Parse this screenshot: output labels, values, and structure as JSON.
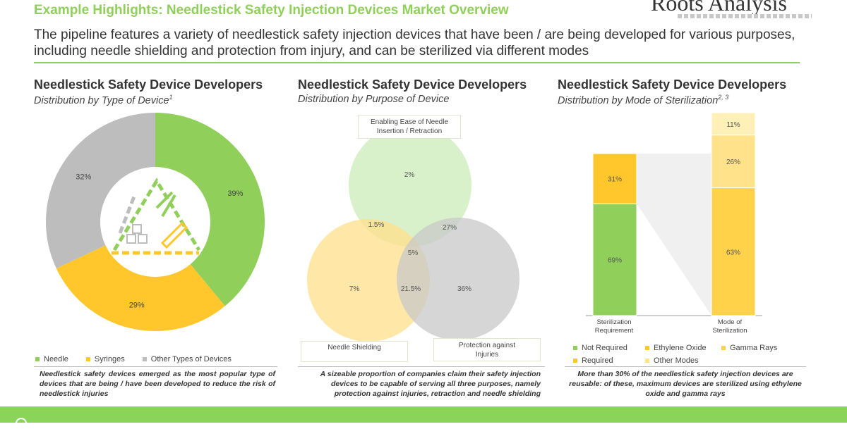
{
  "header": {
    "title": "Example Highlights: Needlestick Safety Injection Devices Market Overview",
    "brand": "Roots Analysis",
    "lead": "The pipeline features a variety of needlestick safety injection devices that have been / are being developed for various purposes, including needle shielding and protection from injury, and can be sterilized via different modes"
  },
  "colors": {
    "green": "#8fcf5a",
    "yellow": "#ffc72c",
    "gray": "#bdbdbd",
    "light_yellow": "#ffe28a",
    "light_green": "#d6f0c4"
  },
  "panels": [
    {
      "title": "Needlestick Safety Device Developers",
      "subtitle": "Distribution by Type of Device",
      "sup": "1",
      "note": "Needlestick safety devices emerged as the most popular type of devices that are being / have been developed to reduce the risk of needlestick injuries",
      "icon": "syringe-triangle-icon"
    },
    {
      "title": "Needlestick Safety Device Developers",
      "subtitle": "Distribution by Purpose of Device",
      "sup": "",
      "note": "A sizeable proportion of companies claim their safety injection devices to be capable of serving all three purposes, namely protection against injuries, retraction and needle shielding"
    },
    {
      "title": "Needlestick Safety Device Developers",
      "subtitle": "Distribution by Mode of Sterilization",
      "sup": "2, 3",
      "note": "More than 30% of the needlestick safety injection devices are reusable: of these, maximum devices are sterilized using ethylene oxide and gamma rays"
    }
  ],
  "chart_data": [
    {
      "type": "pie",
      "title": "Distribution by Type of Device",
      "categories": [
        "Needle",
        "Syringes",
        "Other Types of Devices"
      ],
      "values": [
        39,
        29,
        32
      ],
      "labels": [
        "39%",
        "29%",
        "32%"
      ],
      "colors": [
        "#8fcf5a",
        "#ffc72c",
        "#bdbdbd"
      ]
    },
    {
      "type": "venn",
      "title": "Distribution by Purpose of Device",
      "sets": [
        "Enabling Ease of Needle Insertion / Retraction",
        "Needle Shielding",
        "Protection against Injuries"
      ],
      "regions": [
        {
          "name": "Retraction only",
          "value": "2%"
        },
        {
          "name": "Shielding only",
          "value": "7%"
        },
        {
          "name": "Protection only",
          "value": "36%"
        },
        {
          "name": "Retraction & Shielding",
          "value": "1.5%"
        },
        {
          "name": "Retraction & Protection",
          "value": "27%"
        },
        {
          "name": "Shielding & Protection",
          "value": "21.5%"
        },
        {
          "name": "All three",
          "value": "5%"
        }
      ]
    },
    {
      "type": "bar",
      "stacked": true,
      "title": "Distribution by Mode of Sterilization",
      "categories": [
        "Sterilization Requirement",
        "Mode of Sterilization"
      ],
      "series": [
        {
          "name": "Not Required",
          "color": "#8fcf5a",
          "values": [
            69,
            null
          ]
        },
        {
          "name": "Required",
          "color": "#ffc72c",
          "values": [
            31,
            null
          ]
        },
        {
          "name": "Ethylene Oxide",
          "color": "#ffd24a",
          "values": [
            null,
            63
          ]
        },
        {
          "name": "Gamma Rays",
          "color": "#ffe28a",
          "values": [
            null,
            26
          ]
        },
        {
          "name": "Other Modes",
          "color": "#fff0b8",
          "values": [
            null,
            11
          ]
        }
      ],
      "labels": {
        "Not Required": "69%",
        "Required": "31%",
        "Ethylene Oxide": "63%",
        "Gamma Rays": "26%",
        "Other Modes": "11%"
      },
      "ylim": [
        0,
        100
      ]
    }
  ]
}
